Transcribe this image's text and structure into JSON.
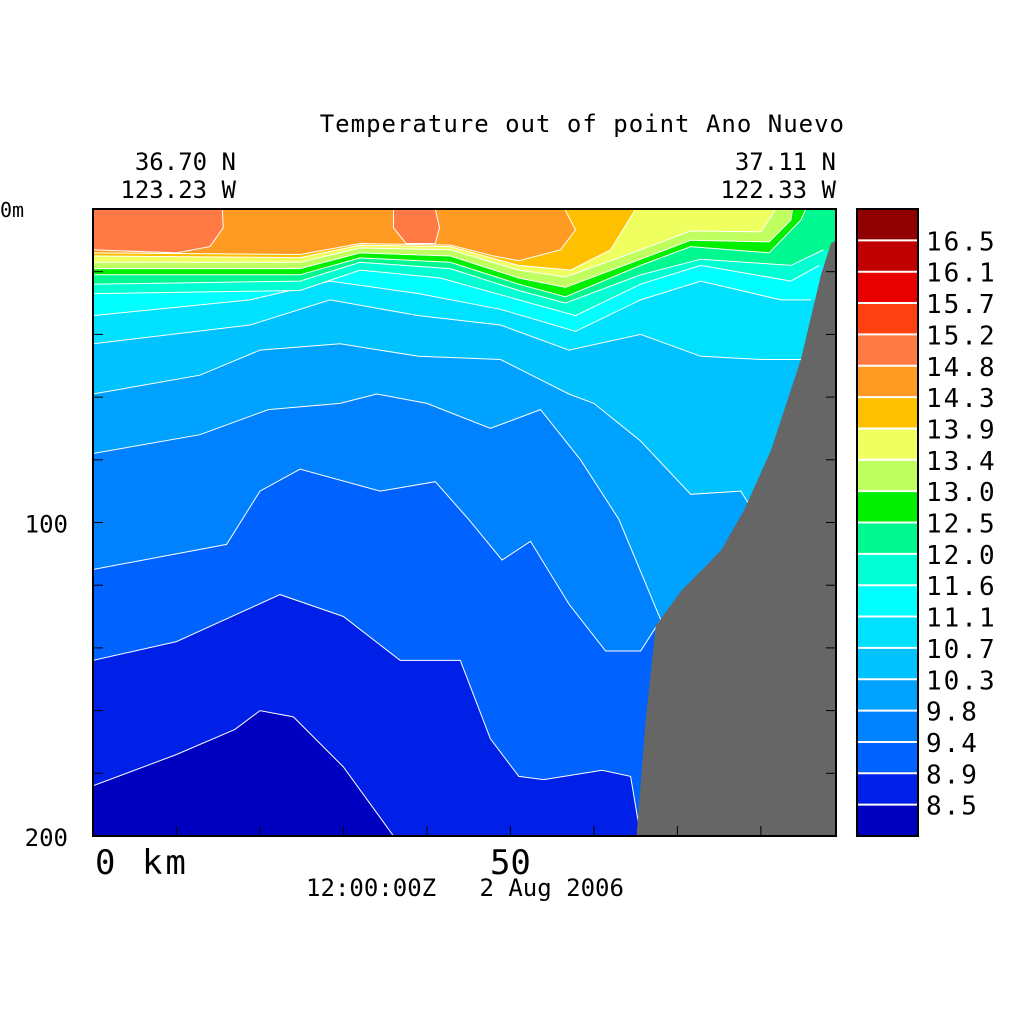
{
  "chart_data": {
    "type": "heatmap",
    "subtype": "filled-contour-section",
    "title": "Temperature out of point Ano Nuevo",
    "start_lat": "36.70 N",
    "start_lon": "123.23 W",
    "end_lat": "37.11 N",
    "end_lon": "122.33 W",
    "time_label": "12:00:00Z   2 Aug 2006",
    "x_axis": {
      "range": [
        0,
        89
      ],
      "unit_label": "km",
      "tick_step": 10,
      "tick_labels": [
        {
          "value": 0,
          "text": "0 km"
        },
        {
          "value": 50,
          "text": "50"
        }
      ]
    },
    "y_axis": {
      "range": [
        0,
        200
      ],
      "inverted": true,
      "tick_step": 20,
      "tick_labels": [
        {
          "value": 0,
          "text": "0m"
        },
        {
          "value": 100,
          "text": "100"
        },
        {
          "value": 200,
          "text": "200"
        }
      ]
    },
    "colorbar": {
      "levels": [
        "8.5",
        "8.9",
        "9.4",
        "9.8",
        "10.3",
        "10.7",
        "11.1",
        "11.6",
        "12.0",
        "12.5",
        "13.0",
        "13.4",
        "13.9",
        "14.3",
        "14.8",
        "15.2",
        "15.7",
        "16.1",
        "16.5"
      ],
      "colors": [
        "#0000c0",
        "#0020e8",
        "#0062ff",
        "#0082ff",
        "#00a2ff",
        "#00c2ff",
        "#00e0ff",
        "#00ffff",
        "#00ffd2",
        "#00f890",
        "#00f000",
        "#c0ff60",
        "#f0ff60",
        "#ffc000",
        "#ff9b22",
        "#ff7a45",
        "#ff4010",
        "#e80000",
        "#c00000",
        "#900000"
      ]
    },
    "land_color": "#666666",
    "isotherms": [
      {
        "level": 8.5,
        "polygons": [
          [
            [
              0,
              184
            ],
            [
              10,
              174
            ],
            [
              17,
              166
            ],
            [
              20,
              160
            ],
            [
              24,
              162
            ],
            [
              30,
              178
            ],
            [
              36,
              200
            ]
          ]
        ]
      },
      {
        "level": 8.9,
        "polygons": [
          [
            [
              0,
              144
            ],
            [
              10,
              138
            ],
            [
              22.4,
              123
            ],
            [
              30,
              130
            ],
            [
              36.8,
              144
            ],
            [
              44,
              144
            ],
            [
              47.6,
              169
            ],
            [
              51,
              181
            ],
            [
              54,
              182
            ],
            [
              61,
              179
            ],
            [
              64.4,
              181
            ],
            [
              65.6,
              200
            ]
          ]
        ]
      },
      {
        "level": 9.4,
        "polygons": [
          [
            [
              0,
              115
            ],
            [
              16,
              107
            ],
            [
              20,
              90
            ],
            [
              24.8,
              83
            ],
            [
              34.4,
              90
            ],
            [
              41,
              87
            ],
            [
              45,
              99
            ],
            [
              49,
              112
            ],
            [
              52.4,
              106
            ],
            [
              57,
              126
            ],
            [
              61.4,
              141
            ],
            [
              65.6,
              141
            ],
            [
              68,
              131
            ]
          ]
        ]
      },
      {
        "level": 9.8,
        "polygons": [
          [
            [
              0,
              78
            ],
            [
              12.8,
              72
            ],
            [
              21,
              64
            ],
            [
              29.6,
              62
            ],
            [
              34,
              59
            ],
            [
              40,
              62
            ],
            [
              47.6,
              70
            ],
            [
              53.6,
              64
            ],
            [
              58.4,
              80
            ],
            [
              63,
              99
            ],
            [
              68,
              131
            ]
          ]
        ]
      },
      {
        "level": 10.3,
        "polygons": [
          [
            [
              0,
              59
            ],
            [
              12.8,
              53
            ],
            [
              20,
              45
            ],
            [
              29.6,
              43
            ],
            [
              39,
              47
            ],
            [
              48.8,
              48
            ],
            [
              57,
              59
            ],
            [
              60,
              62
            ],
            [
              65.6,
              74
            ],
            [
              71.6,
              91
            ],
            [
              77.6,
              90
            ],
            [
              79,
              96
            ]
          ]
        ]
      },
      {
        "level": 10.7,
        "polygons": [
          [
            [
              0,
              43
            ],
            [
              18.8,
              37
            ],
            [
              28.4,
              29
            ],
            [
              39,
              34
            ],
            [
              48.8,
              37
            ],
            [
              57,
              45
            ],
            [
              65.6,
              40
            ],
            [
              72.8,
              47
            ],
            [
              80,
              48
            ],
            [
              85,
              48
            ]
          ]
        ]
      },
      {
        "level": 11.1,
        "polygons": [
          [
            [
              0,
              34
            ],
            [
              18.8,
              29
            ],
            [
              28.4,
              23
            ],
            [
              39,
              27
            ],
            [
              48.8,
              32
            ],
            [
              57.8,
              39
            ],
            [
              65.6,
              29
            ],
            [
              72.8,
              23
            ],
            [
              82.4,
              29
            ],
            [
              86,
              29
            ]
          ]
        ]
      },
      {
        "level": 11.6,
        "polygons": [
          [
            [
              0,
              27
            ],
            [
              24.8,
              26
            ],
            [
              32,
              19.5
            ],
            [
              41.6,
              22
            ],
            [
              51,
              29
            ],
            [
              57.8,
              34
            ],
            [
              65.6,
              24
            ],
            [
              72.8,
              18
            ],
            [
              83.6,
              23
            ],
            [
              87,
              18
            ]
          ]
        ]
      },
      {
        "level": 12.0,
        "polygons": [
          [
            [
              0,
              24
            ],
            [
              24.8,
              23
            ],
            [
              32,
              17
            ],
            [
              42.8,
              19
            ],
            [
              51,
              26
            ],
            [
              56.6,
              30
            ],
            [
              65.6,
              21
            ],
            [
              72.8,
              16
            ],
            [
              83.6,
              18
            ],
            [
              87.5,
              13
            ]
          ]
        ]
      },
      {
        "level": 12.5,
        "polygons": [
          [
            [
              0,
              21
            ],
            [
              24.8,
              21
            ],
            [
              32,
              15.6
            ],
            [
              42.8,
              17
            ],
            [
              51,
              24
            ],
            [
              56.6,
              28
            ],
            [
              65.6,
              18
            ],
            [
              71.6,
              12
            ],
            [
              81,
              14
            ],
            [
              84.8,
              3.5
            ],
            [
              85.4,
              0
            ]
          ]
        ]
      },
      {
        "level": 13.0,
        "polygons": [
          [
            [
              0,
              19
            ],
            [
              24.8,
              19
            ],
            [
              32,
              14
            ],
            [
              42.8,
              15
            ],
            [
              51,
              22
            ],
            [
              56.6,
              25
            ],
            [
              65.6,
              16
            ],
            [
              71.6,
              10
            ],
            [
              81,
              10.5
            ],
            [
              83.6,
              3.5
            ],
            [
              83.8,
              0
            ]
          ]
        ]
      },
      {
        "level": 13.4,
        "polygons": [
          [
            [
              0,
              17
            ],
            [
              24.8,
              17
            ],
            [
              32,
              12.4
            ],
            [
              42.8,
              13
            ],
            [
              51,
              19.5
            ],
            [
              56.6,
              21.7
            ],
            [
              65.6,
              13
            ],
            [
              71.6,
              7
            ],
            [
              80,
              7.3
            ],
            [
              81.8,
              0
            ]
          ]
        ]
      },
      {
        "level": 13.9,
        "polygons": [
          [
            [
              0,
              15
            ],
            [
              24.8,
              15.5
            ],
            [
              32,
              11.5
            ],
            [
              42.8,
              12
            ],
            [
              51,
              18
            ],
            [
              57.2,
              19.5
            ],
            [
              62,
              13
            ],
            [
              65,
              0
            ]
          ]
        ]
      },
      {
        "level": 14.3,
        "polygons": [
          [
            [
              0,
              14
            ],
            [
              24.8,
              14.5
            ],
            [
              32,
              11
            ],
            [
              42.8,
              11.5
            ],
            [
              48,
              15
            ],
            [
              51,
              16.5
            ],
            [
              56,
              13
            ],
            [
              57.8,
              6.7
            ],
            [
              56.5,
              0
            ]
          ]
        ]
      },
      {
        "level": 14.8,
        "polygons": [
          [
            [
              0,
              13
            ],
            [
              10,
              14
            ],
            [
              14,
              12
            ],
            [
              15.6,
              6
            ],
            [
              15.5,
              0
            ]
          ],
          [
            [
              36,
              0
            ],
            [
              36,
              6
            ],
            [
              37.5,
              11
            ],
            [
              41,
              11
            ],
            [
              41.5,
              6
            ],
            [
              41,
              0
            ]
          ]
        ]
      }
    ],
    "land": [
      [
        65.1,
        200
      ],
      [
        66.2,
        163
      ],
      [
        67.4,
        133
      ],
      [
        70.4,
        122
      ],
      [
        75.2,
        109
      ],
      [
        78,
        96
      ],
      [
        81.2,
        77
      ],
      [
        84.8,
        48
      ],
      [
        87.2,
        21
      ],
      [
        88.4,
        11
      ],
      [
        89,
        10
      ],
      [
        89,
        200
      ]
    ]
  }
}
